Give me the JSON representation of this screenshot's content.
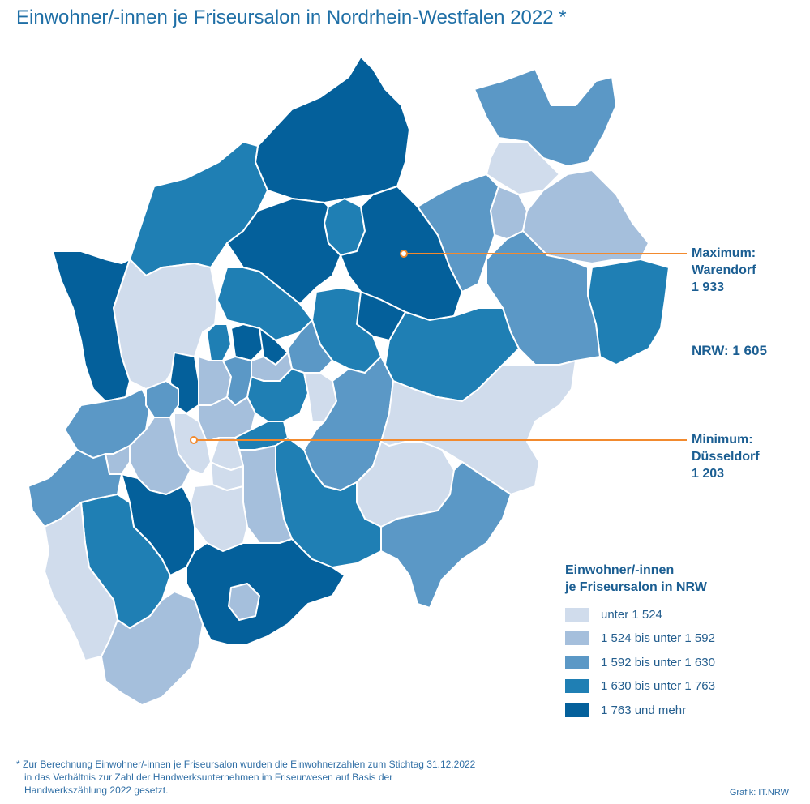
{
  "title": "Einwohner/-innen je Friseursalon in Nordrhein-Westfalen 2022 *",
  "annotations": {
    "maximum": {
      "label": "Maximum:",
      "place": "Warendorf",
      "value": "1 933"
    },
    "nrw": "NRW: 1 605",
    "minimum": {
      "label": "Minimum:",
      "place": "Düsseldorf",
      "value": "1 203"
    }
  },
  "legend": {
    "title_line1": "Einwohner/-innen",
    "title_line2": "je Friseursalon in NRW",
    "classes": [
      {
        "label": "unter 1 524",
        "color": "#d0dcec"
      },
      {
        "label": "1 524 bis unter 1 592",
        "color": "#a5bfdc"
      },
      {
        "label": "1 592 bis unter 1 630",
        "color": "#5b98c6"
      },
      {
        "label": "1 630 bis unter 1 763",
        "color": "#1f7fb4"
      },
      {
        "label": "1 763 und mehr",
        "color": "#04609b"
      }
    ]
  },
  "colors": {
    "title": "#1f6fa6",
    "leader_line": "#f28a2e",
    "region_border": "#ffffff"
  },
  "footnote": {
    "line1": "* Zur Berechnung Einwohner/-innen je Friseursalon wurden die Einwohnerzahlen zum Stichtag 31.12.2022",
    "line2": "in das Verhältnis zur Zahl der Handwerksunternehmen im Friseurwesen auf Basis der",
    "line3": "Handwerkszählung 2022 gesetzt."
  },
  "credit": "Grafik: IT.NRW"
}
